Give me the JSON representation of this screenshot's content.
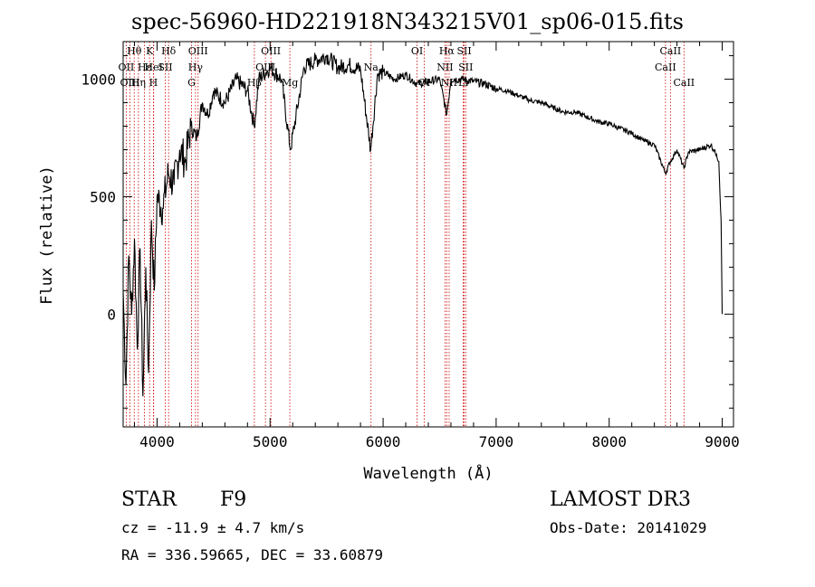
{
  "chart_data": {
    "type": "line",
    "title": "spec-56960-HD221918N343215V01_sp06-015.fits",
    "xlabel": "Wavelength (Å)",
    "ylabel": "Flux (relative)",
    "xlim": [
      3700,
      9100
    ],
    "ylim": [
      -480,
      1160
    ],
    "xticks": [
      4000,
      5000,
      6000,
      7000,
      8000,
      9000
    ],
    "yticks": [
      0,
      500,
      1000
    ],
    "line_color": "#000000",
    "marker_color": "#cc0000",
    "series": [
      {
        "name": "flux",
        "x": [
          3700,
          3725,
          3750,
          3775,
          3800,
          3825,
          3850,
          3875,
          3900,
          3925,
          3950,
          3975,
          4000,
          4050,
          4100,
          4150,
          4200,
          4250,
          4300,
          4350,
          4400,
          4450,
          4500,
          4600,
          4700,
          4800,
          4860,
          4900,
          5000,
          5100,
          5180,
          5300,
          5400,
          5500,
          5600,
          5700,
          5800,
          5890,
          5950,
          6000,
          6100,
          6200,
          6300,
          6400,
          6500,
          6563,
          6600,
          6700,
          6800,
          6900,
          7000,
          7100,
          7200,
          7300,
          7400,
          7500,
          7600,
          7700,
          7800,
          7900,
          8000,
          8100,
          8200,
          8300,
          8400,
          8498,
          8542,
          8600,
          8662,
          8700,
          8800,
          8900,
          8950,
          8970,
          8990,
          9000
        ],
        "y": [
          100,
          -300,
          250,
          0,
          320,
          -150,
          280,
          -350,
          200,
          -250,
          400,
          100,
          500,
          450,
          600,
          550,
          700,
          650,
          800,
          750,
          900,
          850,
          950,
          900,
          1000,
          950,
          800,
          1000,
          1050,
          1000,
          700,
          1050,
          1080,
          1100,
          1050,
          1060,
          1040,
          700,
          1020,
          1030,
          1000,
          1020,
          980,
          990,
          1000,
          850,
          1000,
          1000,
          990,
          980,
          960,
          950,
          930,
          910,
          900,
          880,
          860,
          860,
          840,
          820,
          810,
          790,
          770,
          740,
          720,
          600,
          650,
          700,
          620,
          690,
          700,
          720,
          680,
          650,
          400,
          0
        ]
      }
    ],
    "lines": [
      {
        "name": "Hθ",
        "x": 3798,
        "row": 0
      },
      {
        "name": "OII",
        "x": 3727,
        "row": 1
      },
      {
        "name": "OIII",
        "x": 3760,
        "row": 2
      },
      {
        "name": "K",
        "x": 3934,
        "row": 0
      },
      {
        "name": "Hε",
        "x": 3889,
        "row": 1
      },
      {
        "name": "HeI",
        "x": 3970,
        "row": 1
      },
      {
        "name": "Hη",
        "x": 3835,
        "row": 2
      },
      {
        "name": "SII",
        "x": 4072,
        "row": 1
      },
      {
        "name": "H",
        "x": 3968,
        "row": 2
      },
      {
        "name": "Hδ",
        "x": 4102,
        "row": 0
      },
      {
        "name": "OIII",
        "x": 4363,
        "row": 0
      },
      {
        "name": "Hγ",
        "x": 4340,
        "row": 1
      },
      {
        "name": "G",
        "x": 4305,
        "row": 2
      },
      {
        "name": "OIII",
        "x": 5007,
        "row": 0
      },
      {
        "name": "OIII",
        "x": 4959,
        "row": 1
      },
      {
        "name": "Hβ",
        "x": 4861,
        "row": 2
      },
      {
        "name": "Mg",
        "x": 5175,
        "row": 2
      },
      {
        "name": "Na",
        "x": 5893,
        "row": 1
      },
      {
        "name": "OI",
        "x": 6300,
        "row": 0
      },
      {
        "name": "OI",
        "x": 6364,
        "row": 2
      },
      {
        "name": "Hα",
        "x": 6563,
        "row": 0
      },
      {
        "name": "SII",
        "x": 6717,
        "row": 0
      },
      {
        "name": "NII",
        "x": 6548,
        "row": 1
      },
      {
        "name": "SII",
        "x": 6731,
        "row": 1
      },
      {
        "name": "NII",
        "x": 6584,
        "row": 2
      },
      {
        "name": "Li",
        "x": 6708,
        "row": 2
      },
      {
        "name": "CaII",
        "x": 8542,
        "row": 0
      },
      {
        "name": "CaII",
        "x": 8498,
        "row": 1
      },
      {
        "name": "CaII",
        "x": 8662,
        "row": 2
      }
    ]
  },
  "info": {
    "class": "STAR",
    "subclass": "F9",
    "survey": "LAMOST DR3",
    "cz": "cz = -11.9 ± 4.7 km/s",
    "obs_date": "Obs-Date: 20141029",
    "coords": "RA = 336.59665, DEC =  33.60879"
  }
}
